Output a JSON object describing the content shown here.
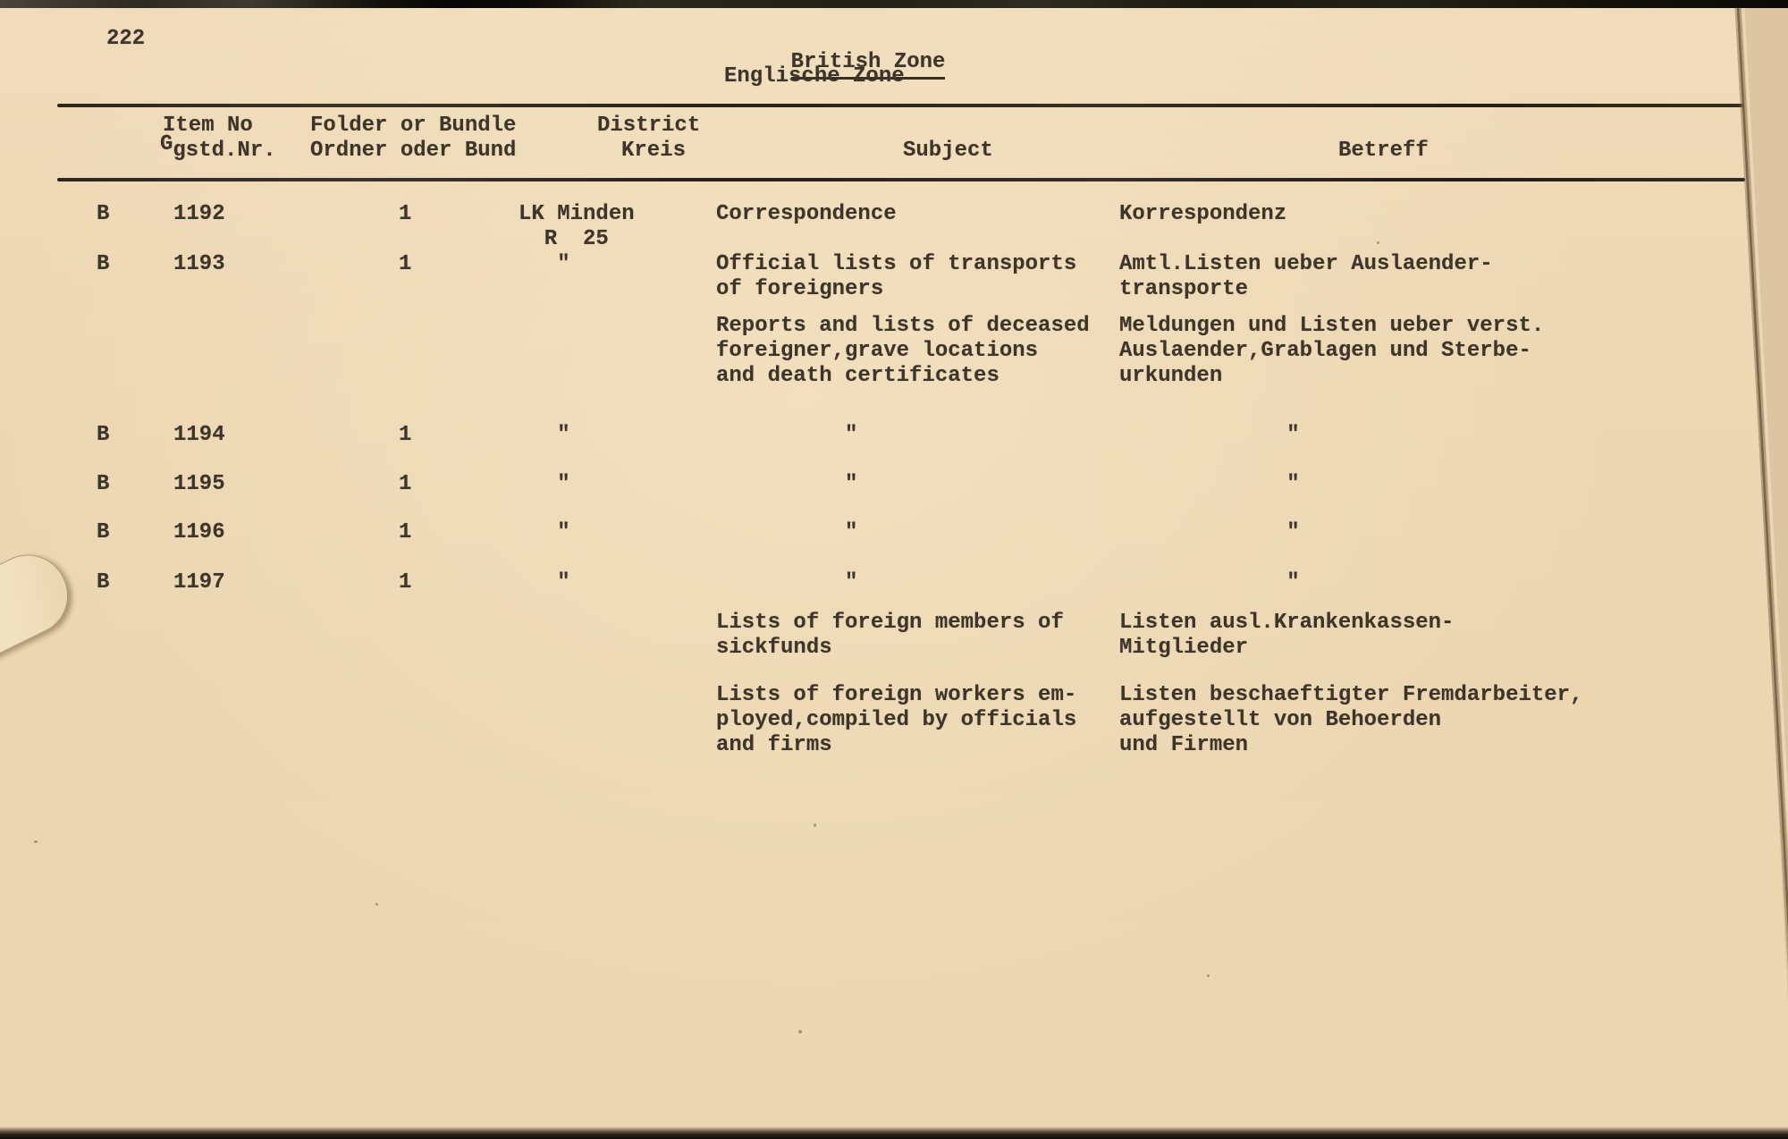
{
  "page": {
    "number": "222",
    "title_en": "British Zone",
    "title_de": "Englische Zone"
  },
  "table": {
    "headers": {
      "item_no_en": "Item No",
      "item_no_de_sup": "G",
      "item_no_de": "gstd.Nr.",
      "folder_en": "Folder or Bundle",
      "folder_de": "Ordner oder Bund",
      "district_en": "District",
      "district_de": "Kreis",
      "subject_en": "Subject",
      "subject_de": "Betreff"
    },
    "rows": [
      {
        "series": "B",
        "item_no": "1192",
        "folder": "1",
        "district": [
          "LK Minden",
          "  R  25"
        ],
        "subject": [
          "Correspondence"
        ],
        "betreff": [
          "Korrespondenz"
        ]
      },
      {
        "series": "B",
        "item_no": "1193",
        "folder": "1",
        "district": [
          "   \""
        ],
        "subject": [
          "Official lists of transports",
          "of foreigners"
        ],
        "betreff": [
          "Amtl.Listen ueber Auslaender-",
          "transporte"
        ]
      },
      {
        "subject": [
          "Reports and lists of deceased",
          "foreigner,grave locations",
          "and death certificates"
        ],
        "betreff": [
          "Meldungen und Listen ueber verst.",
          "Auslaender,Grablagen und Sterbe-",
          "urkunden"
        ]
      },
      {
        "series": "B",
        "item_no": "1194",
        "folder": "1",
        "district": [
          "   \""
        ],
        "subject": [
          "          \""
        ],
        "betreff": [
          "             \""
        ]
      },
      {
        "series": "B",
        "item_no": "1195",
        "folder": "1",
        "district": [
          "   \""
        ],
        "subject": [
          "          \""
        ],
        "betreff": [
          "             \""
        ]
      },
      {
        "series": "B",
        "item_no": "1196",
        "folder": "1",
        "district": [
          "   \""
        ],
        "subject": [
          "          \""
        ],
        "betreff": [
          "             \""
        ]
      },
      {
        "series": "B",
        "item_no": "1197",
        "folder": "1",
        "district": [
          "   \""
        ],
        "subject": [
          "          \""
        ],
        "betreff": [
          "             \""
        ]
      },
      {
        "subject": [
          "Lists of foreign members of",
          "sickfunds"
        ],
        "betreff": [
          "Listen ausl.Krankenkassen-",
          "Mitglieder"
        ]
      },
      {
        "subject": [
          "Lists of foreign workers em-",
          "ployed,compiled by officials",
          "and firms"
        ],
        "betreff": [
          "Listen beschaeftigter Fremdarbeiter,",
          "aufgestellt von Behoerden",
          "und Firmen"
        ]
      }
    ]
  }
}
